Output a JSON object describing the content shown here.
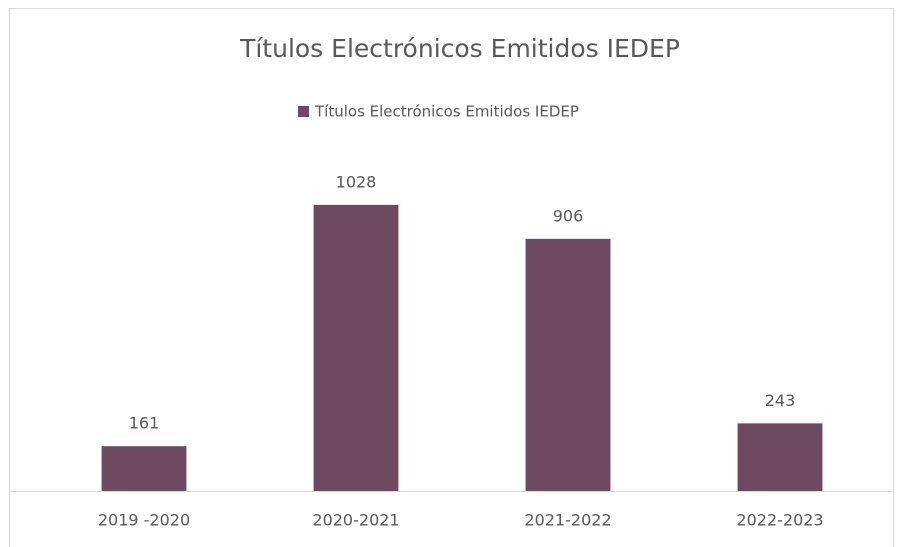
{
  "chart_data": {
    "type": "bar",
    "title": "Títulos Electrónicos Emitidos IEDEP",
    "legend": "Títulos Electrónicos Emitidos IEDEP",
    "categories": [
      "2019 -2020",
      "2020-2021",
      "2021-2022",
      "2022-2023"
    ],
    "values": [
      161,
      1028,
      906,
      243
    ],
    "color": "#6d4a5f",
    "ylim": [
      0,
      1200
    ]
  }
}
